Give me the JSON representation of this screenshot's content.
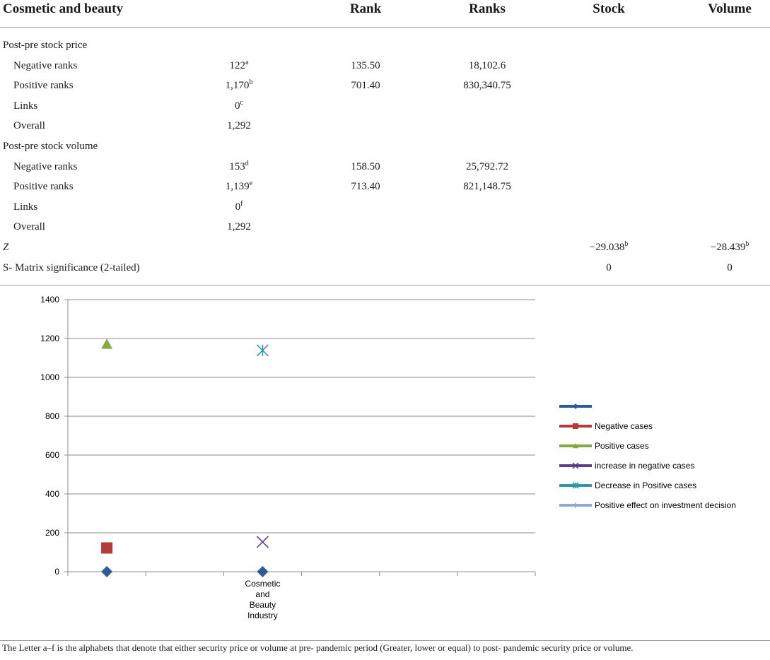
{
  "table": {
    "headers": [
      "Cosmetic and beauty",
      "Rank",
      "Ranks",
      "Stock",
      "Volume"
    ],
    "rows": [
      {
        "label": "Post-pre stock price",
        "indent": false,
        "n": "",
        "n_sup": "",
        "rank": "",
        "ranks": "",
        "stock": "",
        "stock_sup": "",
        "volume": "",
        "volume_sup": "",
        "italic": false
      },
      {
        "label": "Negative ranks",
        "indent": true,
        "n": "122",
        "n_sup": "a",
        "rank": "135.50",
        "ranks": "18,102.6",
        "stock": "",
        "stock_sup": "",
        "volume": "",
        "volume_sup": "",
        "italic": false
      },
      {
        "label": "Positive ranks",
        "indent": true,
        "n": "1,170",
        "n_sup": "b",
        "rank": "701.40",
        "ranks": "830,340.75",
        "stock": "",
        "stock_sup": "",
        "volume": "",
        "volume_sup": "",
        "italic": false
      },
      {
        "label": "Links",
        "indent": true,
        "n": "0",
        "n_sup": "c",
        "rank": "",
        "ranks": "",
        "stock": "",
        "stock_sup": "",
        "volume": "",
        "volume_sup": "",
        "italic": false
      },
      {
        "label": "Overall",
        "indent": true,
        "n": "1,292",
        "n_sup": "",
        "rank": "",
        "ranks": "",
        "stock": "",
        "stock_sup": "",
        "volume": "",
        "volume_sup": "",
        "italic": false
      },
      {
        "label": "Post-pre stock volume",
        "indent": false,
        "n": "",
        "n_sup": "",
        "rank": "",
        "ranks": "",
        "stock": "",
        "stock_sup": "",
        "volume": "",
        "volume_sup": "",
        "italic": false
      },
      {
        "label": "Negative ranks",
        "indent": true,
        "n": "153",
        "n_sup": "d",
        "rank": "158.50",
        "ranks": "25,792.72",
        "stock": "",
        "stock_sup": "",
        "volume": "",
        "volume_sup": "",
        "italic": false
      },
      {
        "label": "Positive ranks",
        "indent": true,
        "n": "1,139",
        "n_sup": "e",
        "rank": "713.40",
        "ranks": "821,148.75",
        "stock": "",
        "stock_sup": "",
        "volume": "",
        "volume_sup": "",
        "italic": false
      },
      {
        "label": "Links",
        "indent": true,
        "n": "0",
        "n_sup": "f",
        "rank": "",
        "ranks": "",
        "stock": "",
        "stock_sup": "",
        "volume": "",
        "volume_sup": "",
        "italic": false
      },
      {
        "label": "Overall",
        "indent": true,
        "n": "1,292",
        "n_sup": "",
        "rank": "",
        "ranks": "",
        "stock": "",
        "stock_sup": "",
        "volume": "",
        "volume_sup": "",
        "italic": false
      },
      {
        "label": "Z",
        "indent": false,
        "n": "",
        "n_sup": "",
        "rank": "",
        "ranks": "",
        "stock": "−29.038",
        "stock_sup": "b",
        "volume": "−28.439",
        "volume_sup": "b",
        "italic": true
      },
      {
        "label": "S- Matrix significance (2-tailed)",
        "indent": false,
        "n": "",
        "n_sup": "",
        "rank": "",
        "ranks": "",
        "stock": "0",
        "stock_sup": "",
        "volume": "0",
        "volume_sup": "",
        "italic": false
      }
    ]
  },
  "chart_data": {
    "type": "scatter",
    "title": "",
    "xlabel": "",
    "ylabel": "",
    "ylim": [
      0,
      1400
    ],
    "yticks": [
      "0",
      "200",
      "400",
      "600",
      "800",
      "1000",
      "1200",
      "1400"
    ],
    "category_label": [
      "Cosmetic",
      "and",
      "Beauty",
      "Industry"
    ],
    "grid": true,
    "legend_position": "right",
    "series": [
      {
        "name": "",
        "color": "#2e5b9a",
        "marker": "diamond",
        "points": [
          {
            "slot": 1,
            "y": 0
          },
          {
            "slot": 3,
            "y": 0
          }
        ]
      },
      {
        "name": "Negative cases",
        "color": "#b83a36",
        "marker": "square",
        "points": [
          {
            "slot": 1,
            "y": 122
          }
        ]
      },
      {
        "name": "Positive cases",
        "color": "#86a843",
        "marker": "triangle",
        "points": [
          {
            "slot": 1,
            "y": 1170
          }
        ]
      },
      {
        "name": "increase in negative cases",
        "color": "#5e3e87",
        "marker": "x",
        "points": [
          {
            "slot": 3,
            "y": 153
          }
        ]
      },
      {
        "name": "Decrease in Positive cases",
        "color": "#2d98b0",
        "marker": "star",
        "points": [
          {
            "slot": 3,
            "y": 1139
          }
        ]
      },
      {
        "name": "Positive effect on investment decision",
        "color": "#8faad7",
        "marker": "plus",
        "points": []
      }
    ]
  },
  "footnote": "The Letter a–f is the alphabets that denote that either security price or volume at pre- pandemic period (Greater, lower or equal) to post- pandemic security price or volume."
}
